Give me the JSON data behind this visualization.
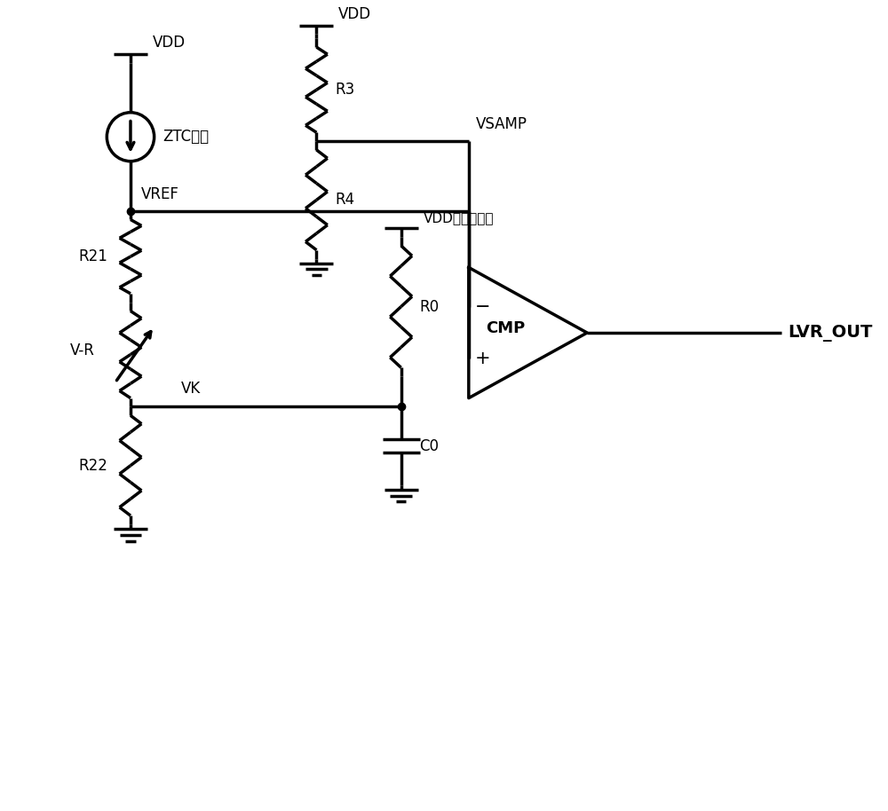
{
  "bg_color": "#ffffff",
  "line_color": "#000000",
  "line_width": 2.5,
  "fig_width": 10.0,
  "fig_height": 9.14,
  "labels": {
    "VDD_top_right": "VDD",
    "VDD_top_left": "VDD",
    "VDD_mid_right": "VDD或其他电平",
    "R3": "R3",
    "R4": "R4",
    "VSAMP": "VSAMP",
    "VREF": "VREF",
    "R21": "R21",
    "VR": "V-R",
    "VK": "VK",
    "R22": "R22",
    "R0": "R0",
    "C0": "C0",
    "ZTC": "ZTC电流",
    "CMP": "CMP",
    "LVR_OUT": "LVR_OUT"
  }
}
